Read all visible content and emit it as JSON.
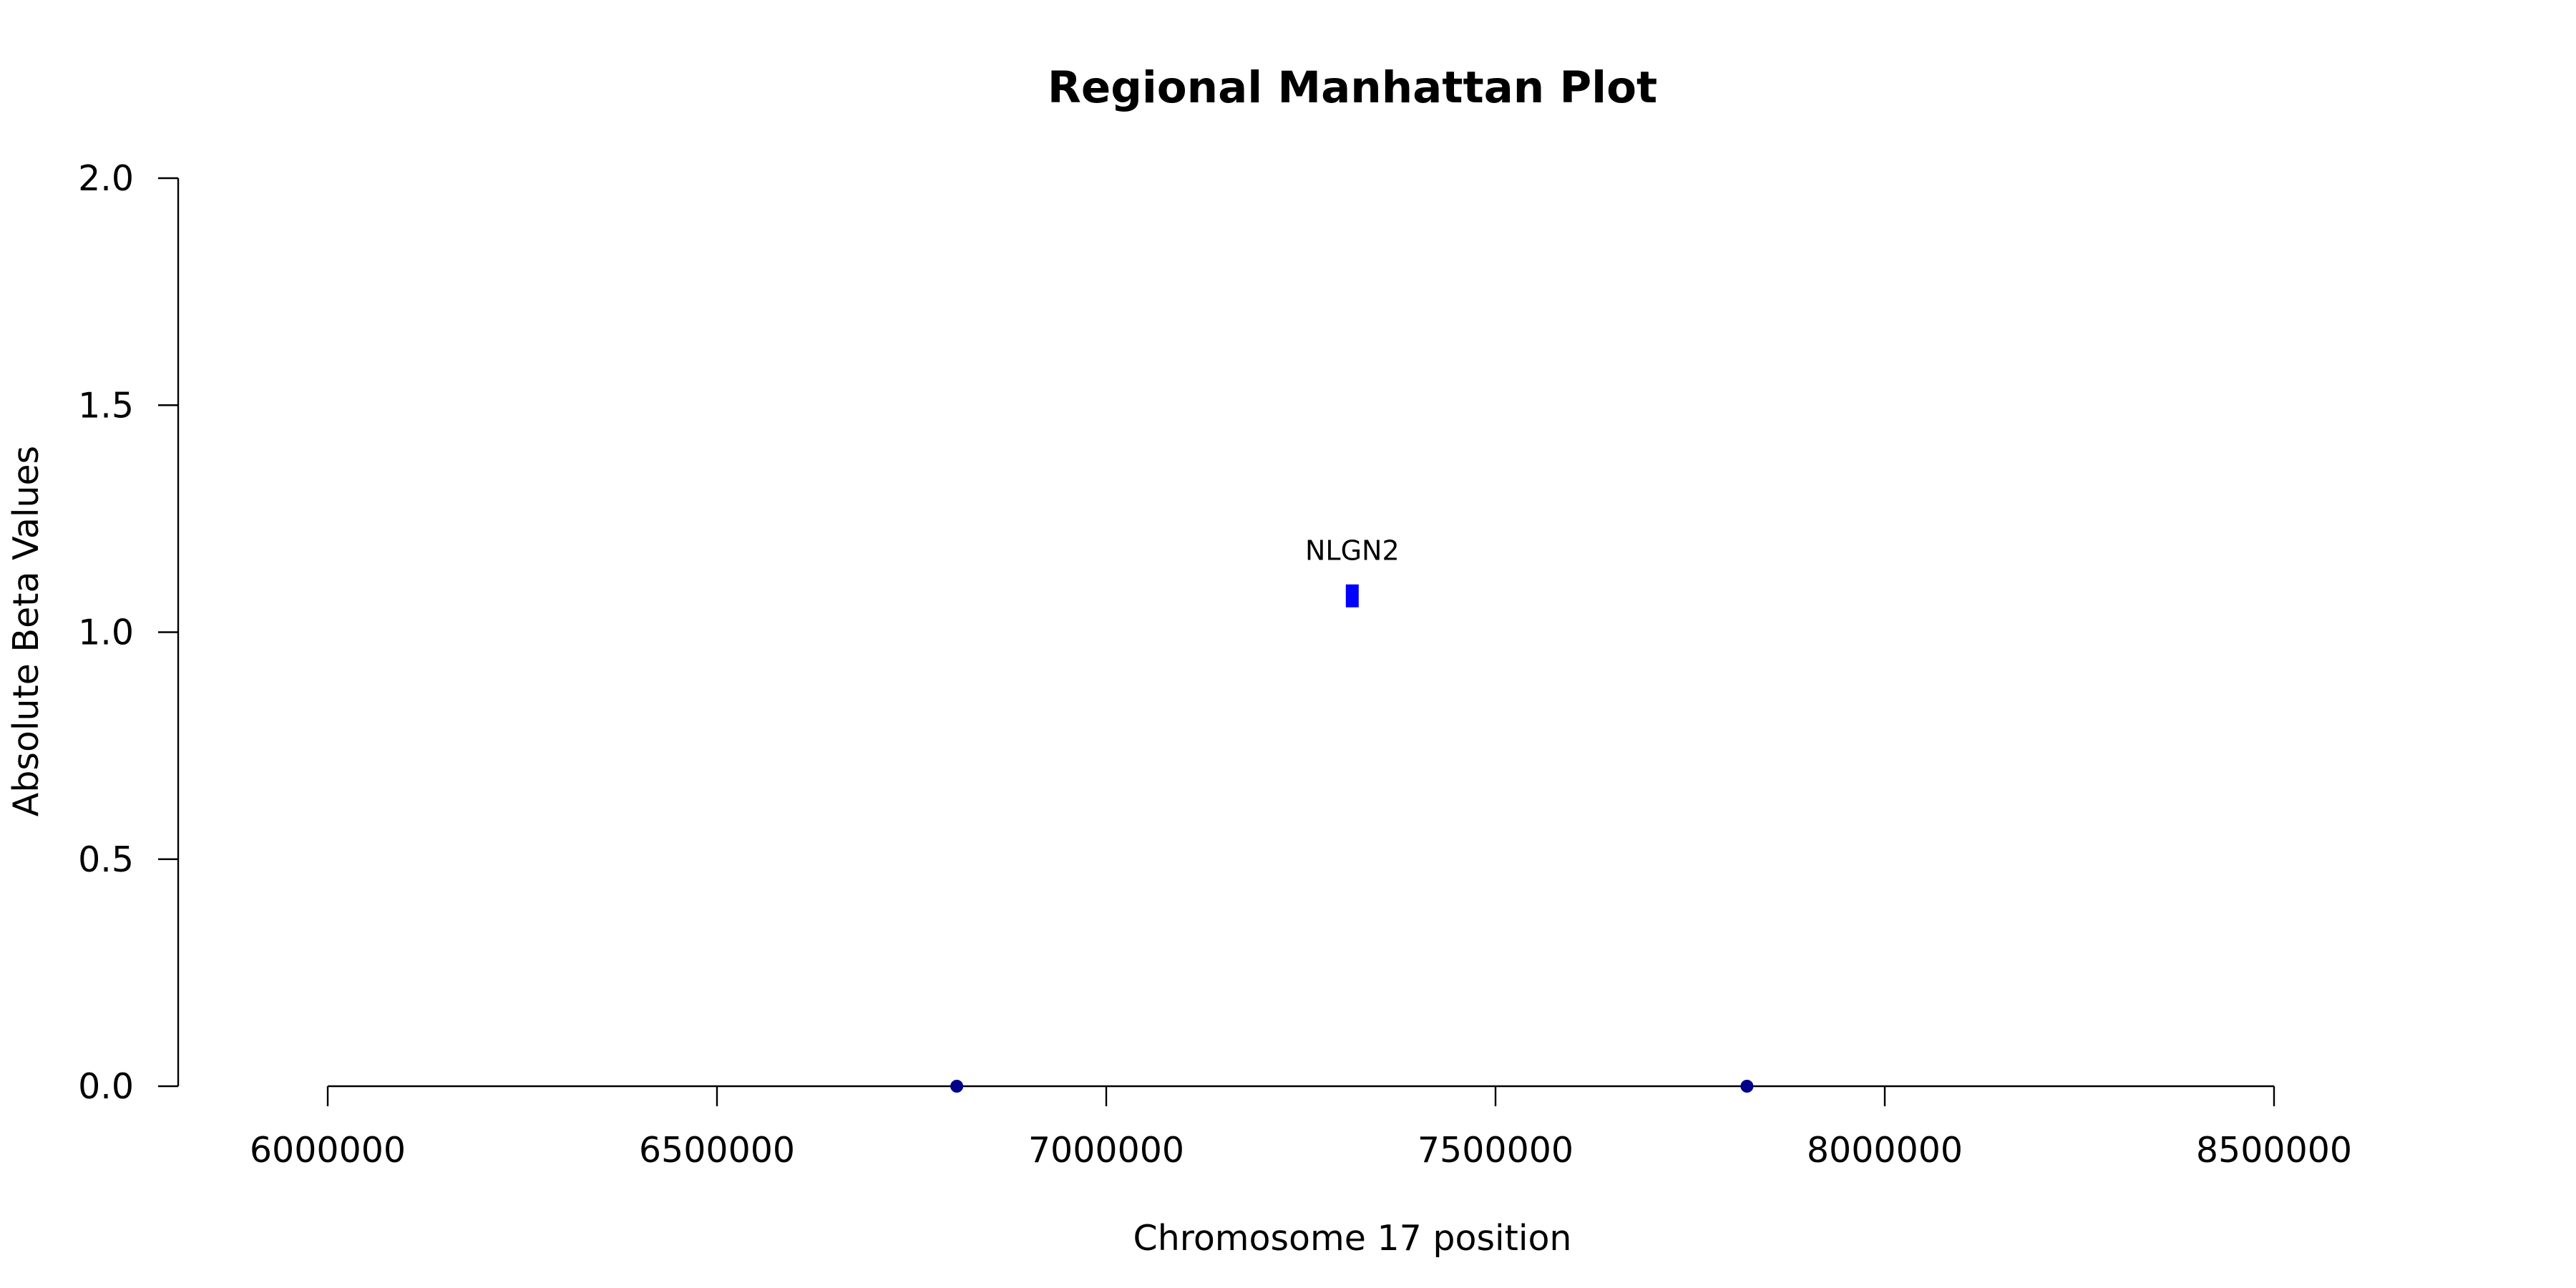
{
  "chart_data": {
    "type": "scatter",
    "title": "Regional Manhattan Plot",
    "xlabel": "Chromosome 17 position",
    "ylabel": "Absolute Beta Values",
    "xlim": [
      6000000,
      8500000
    ],
    "ylim": [
      0,
      2
    ],
    "x_ticks": [
      6000000,
      6500000,
      7000000,
      7500000,
      8000000,
      8500000
    ],
    "x_tick_labels": [
      "6000000",
      "6500000",
      "7000000",
      "7500000",
      "8000000",
      "8500000"
    ],
    "y_ticks": [
      0,
      0.5,
      1,
      1.5,
      2
    ],
    "y_tick_labels": [
      "0.0",
      "0.5",
      "1.0",
      "1.5",
      "2.0"
    ],
    "grid": false,
    "points": [
      {
        "x": 6808000,
        "y": 0.0,
        "color": "#00008b",
        "marker": "circle"
      },
      {
        "x": 7823000,
        "y": 0.0,
        "color": "#00008b",
        "marker": "circle"
      }
    ],
    "gene_marks": [
      {
        "x": 7316000,
        "y": 1.08,
        "color": "#0000ff",
        "label": "NLGN2"
      }
    ]
  }
}
